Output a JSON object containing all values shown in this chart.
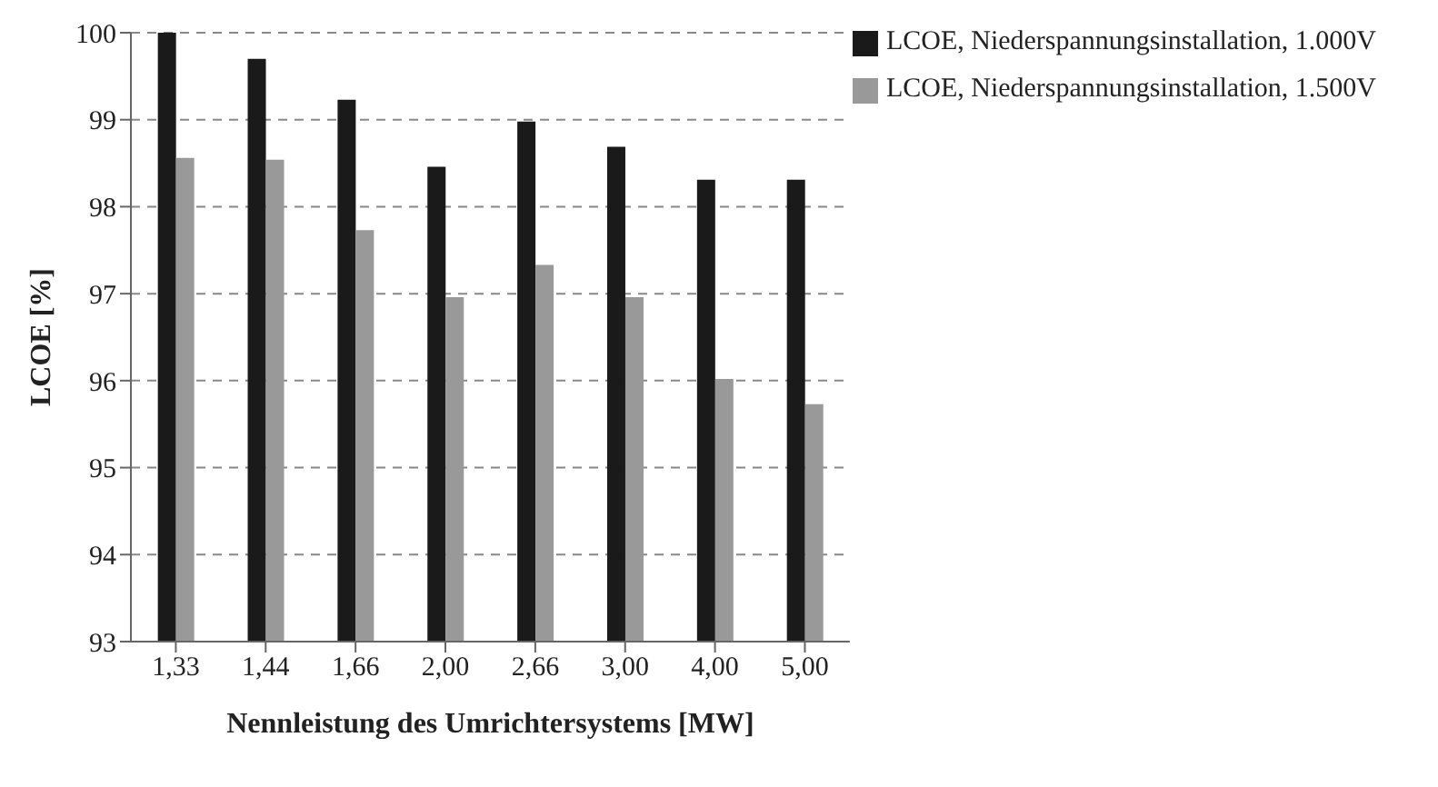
{
  "chart_data": {
    "type": "bar",
    "xlabel": "Nennleistung des Umrichtersystems [MW]",
    "ylabel": "LCOE [%]",
    "categories": [
      "1,33",
      "1,44",
      "1,66",
      "2,00",
      "2,66",
      "3,00",
      "4,00",
      "5,00"
    ],
    "series": [
      {
        "name": "LCOE, Niederspannungsinstallation, 1.000V",
        "color": "#1a1a1a",
        "values": [
          100.0,
          99.7,
          99.23,
          98.46,
          98.98,
          98.69,
          98.31,
          98.31
        ]
      },
      {
        "name": "LCOE, Niederspannungsinstallation, 1.500V",
        "color": "#999999",
        "values": [
          98.56,
          98.54,
          97.73,
          96.96,
          97.33,
          96.96,
          96.02,
          95.73
        ]
      }
    ],
    "ylim": [
      93,
      100
    ],
    "yticks": [
      93,
      94,
      95,
      96,
      97,
      98,
      99,
      100
    ],
    "grid": "y",
    "legend": "top right"
  }
}
